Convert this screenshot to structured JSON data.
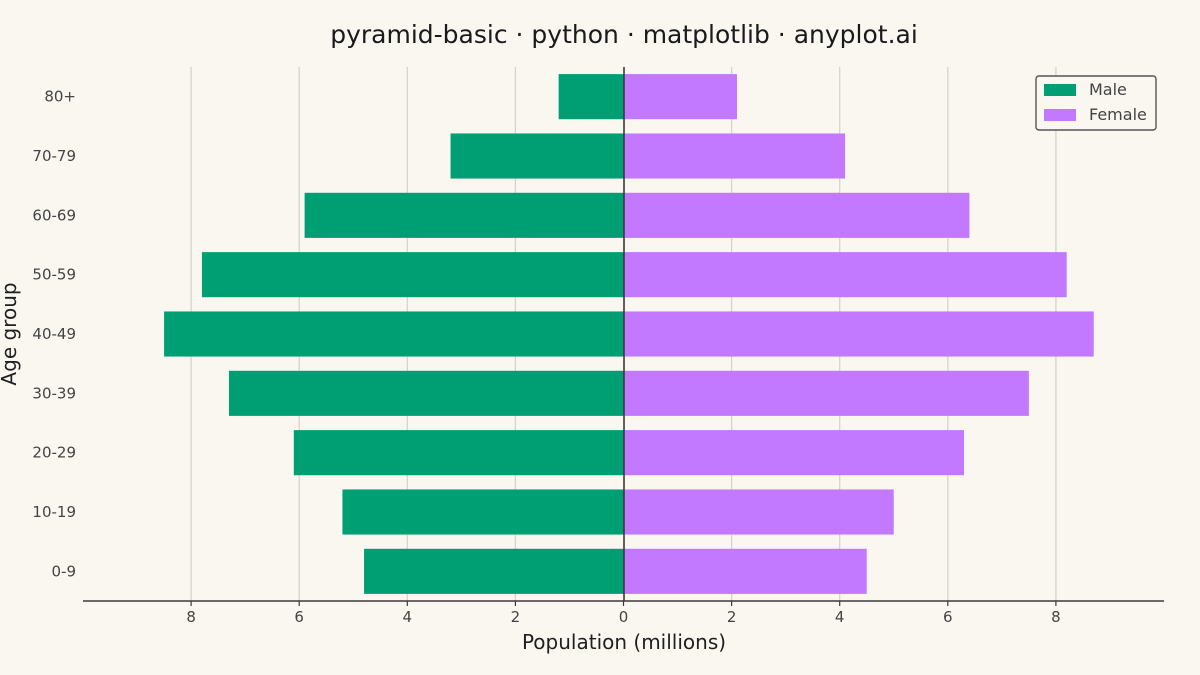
{
  "chart_data": {
    "type": "bar",
    "orientation": "horizontal-diverging",
    "title": "pyramid-basic · python · matplotlib · anyplot.ai",
    "xlabel": "Population (millions)",
    "ylabel": "Age group",
    "categories": [
      "0-9",
      "10-19",
      "20-29",
      "30-39",
      "40-49",
      "50-59",
      "60-69",
      "70-79",
      "80+"
    ],
    "series": [
      {
        "name": "Male",
        "color": "#009E73",
        "side": "left",
        "values": [
          4.8,
          5.2,
          6.1,
          7.3,
          8.5,
          7.8,
          5.9,
          3.2,
          1.2
        ]
      },
      {
        "name": "Female",
        "color": "#C278FF",
        "side": "right",
        "values": [
          4.5,
          5.0,
          6.3,
          7.5,
          8.7,
          8.2,
          6.4,
          4.1,
          2.1
        ]
      }
    ],
    "xlim": [
      -10,
      10
    ],
    "xticks": [
      -8,
      -6,
      -4,
      -2,
      0,
      2,
      4,
      6,
      8
    ],
    "xtick_labels": [
      "8",
      "6",
      "4",
      "2",
      "0",
      "2",
      "4",
      "6",
      "8"
    ],
    "grid": "vertical",
    "legend_position": "top-right"
  }
}
